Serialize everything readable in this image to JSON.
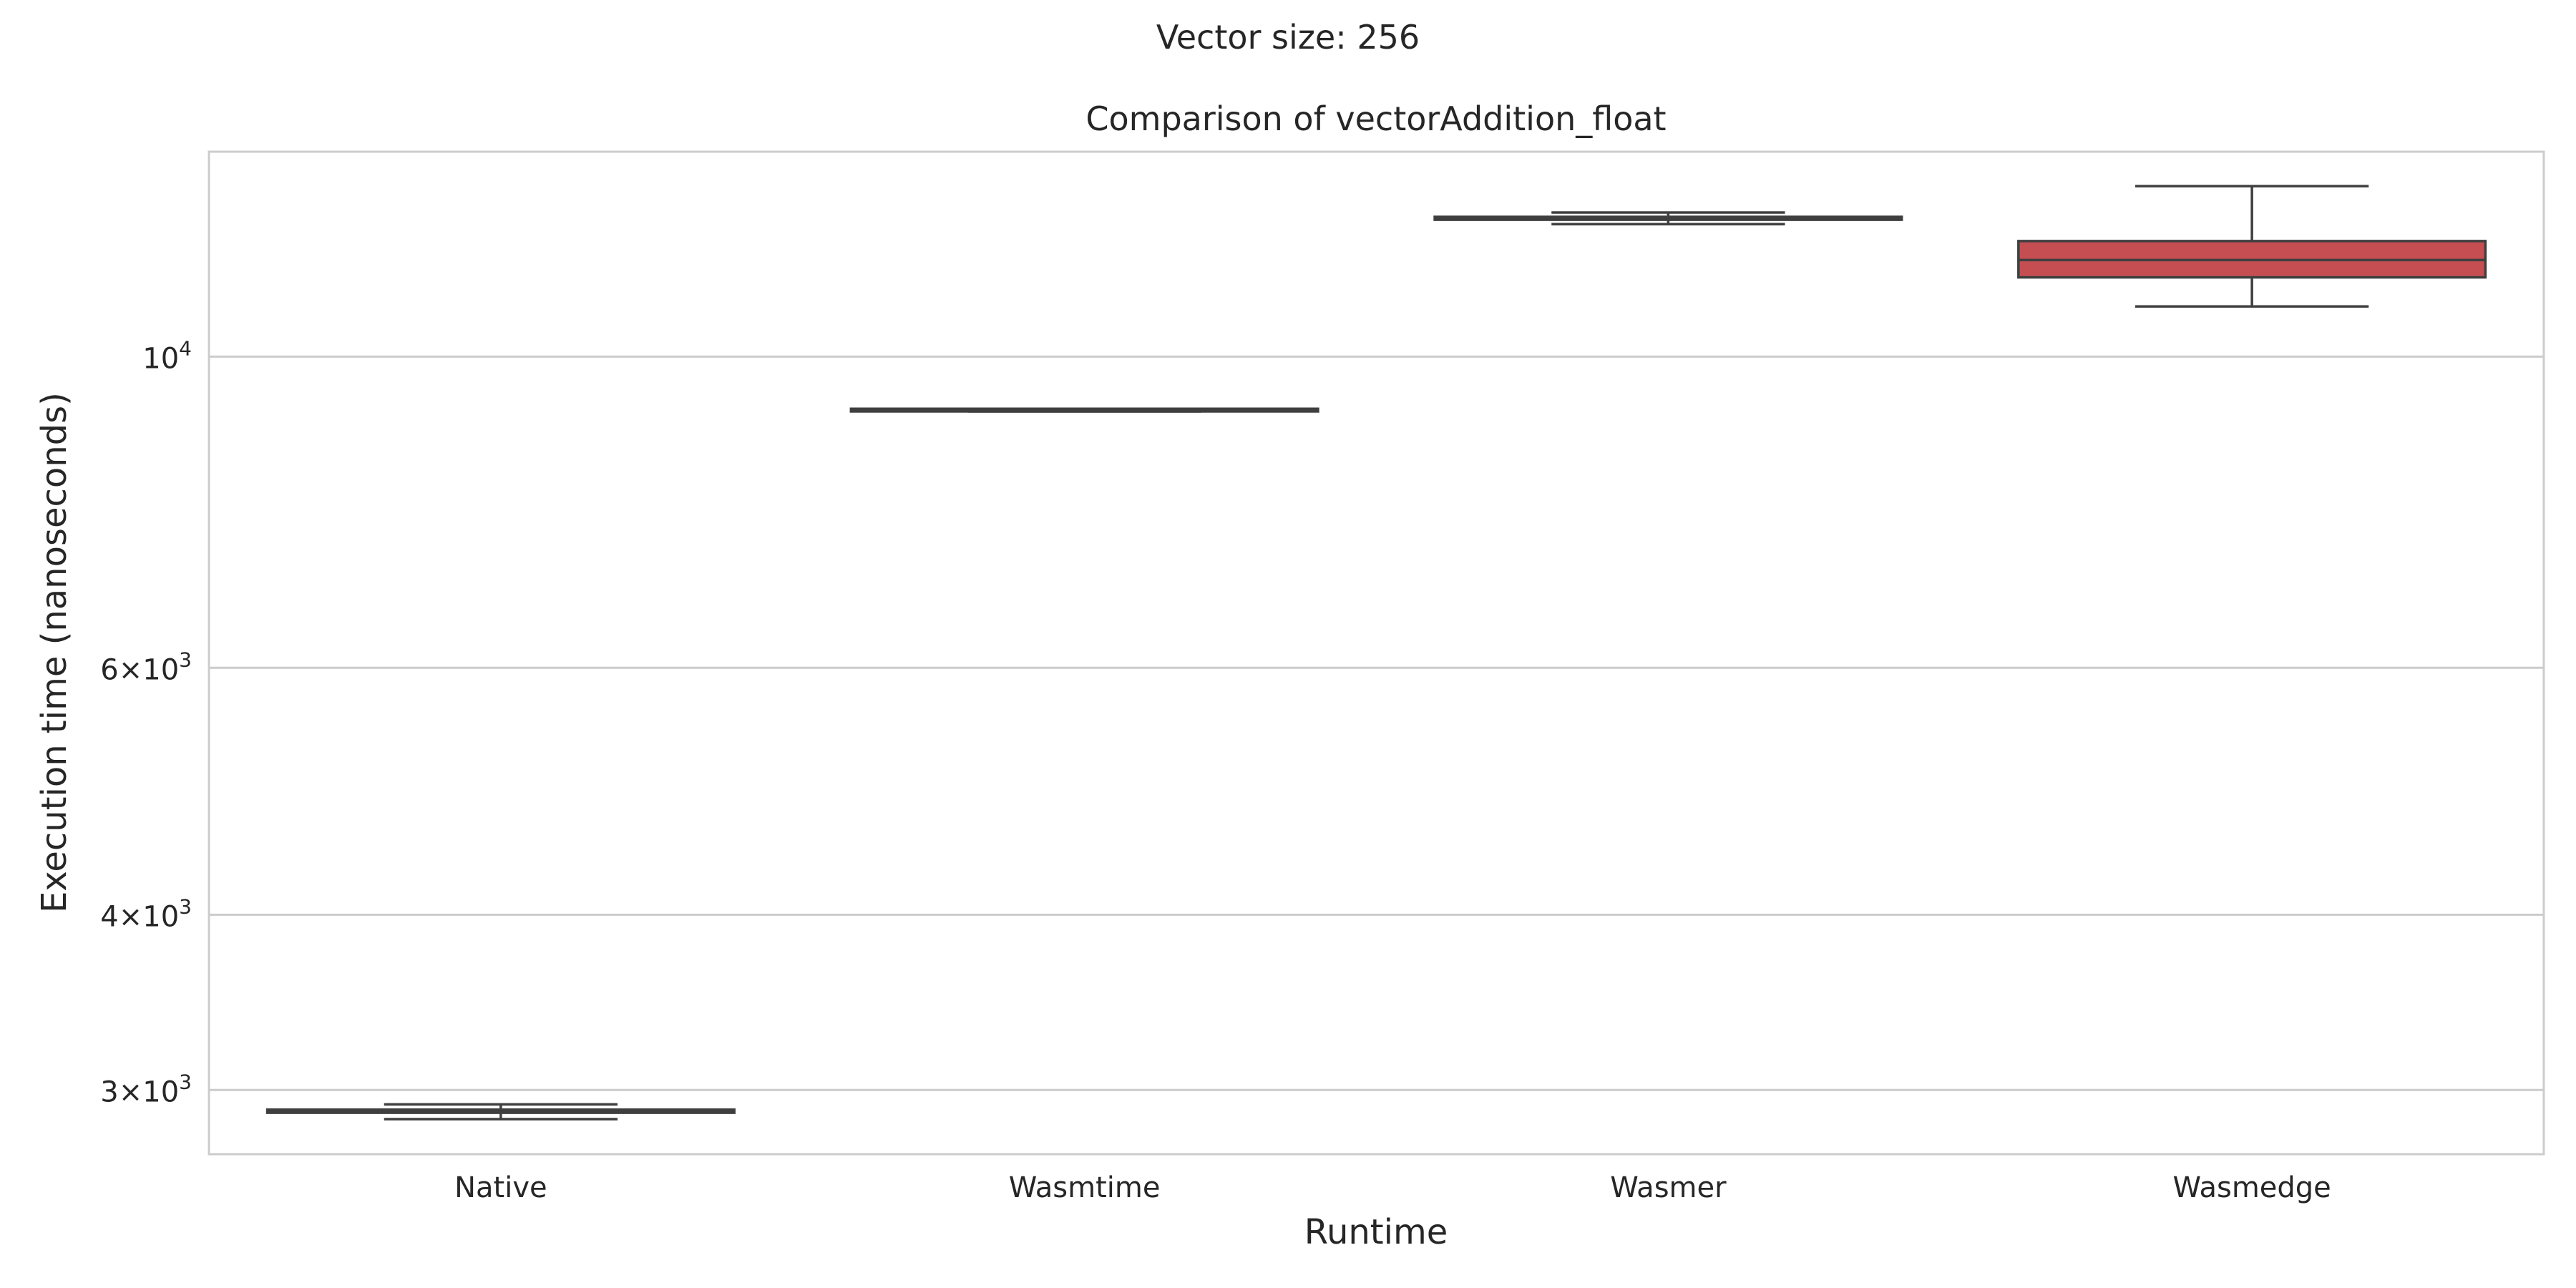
{
  "figure": {
    "suptitle": "Vector size: 256"
  },
  "chart_data": {
    "type": "box",
    "title": "Comparison of vectorAddition_float",
    "xlabel": "Runtime",
    "ylabel": "Execution time (nanoseconds)",
    "y_scale": "log",
    "ylim": [
      2700,
      14000
    ],
    "grid": "y",
    "yticks": [
      {
        "value": 10000,
        "base": "10",
        "exp": "4"
      },
      {
        "value": 6000,
        "mant": "6",
        "base": "10",
        "exp": "3"
      },
      {
        "value": 4000,
        "mant": "4",
        "base": "10",
        "exp": "3"
      },
      {
        "value": 3000,
        "mant": "3",
        "base": "10",
        "exp": "3"
      }
    ],
    "categories": [
      "Native",
      "Wasmtime",
      "Wasmer",
      "Wasmedge"
    ],
    "boxes": [
      {
        "category": "Native",
        "whisker_low": 2860,
        "q1": 2890,
        "median": 2895,
        "q3": 2905,
        "whisker_high": 2930,
        "color": "#4c72b0"
      },
      {
        "category": "Wasmtime",
        "whisker_low": 9140,
        "q1": 9140,
        "median": 9150,
        "q3": 9180,
        "whisker_high": 9180,
        "color": "#dd8452"
      },
      {
        "category": "Wasmer",
        "whisker_low": 12430,
        "q1": 12520,
        "median": 12550,
        "q3": 12580,
        "whisker_high": 12670,
        "color": "#55a868"
      },
      {
        "category": "Wasmedge",
        "whisker_low": 10860,
        "q1": 11390,
        "median": 11720,
        "q3": 12090,
        "whisker_high": 13230,
        "color": "#c44e52"
      }
    ]
  }
}
